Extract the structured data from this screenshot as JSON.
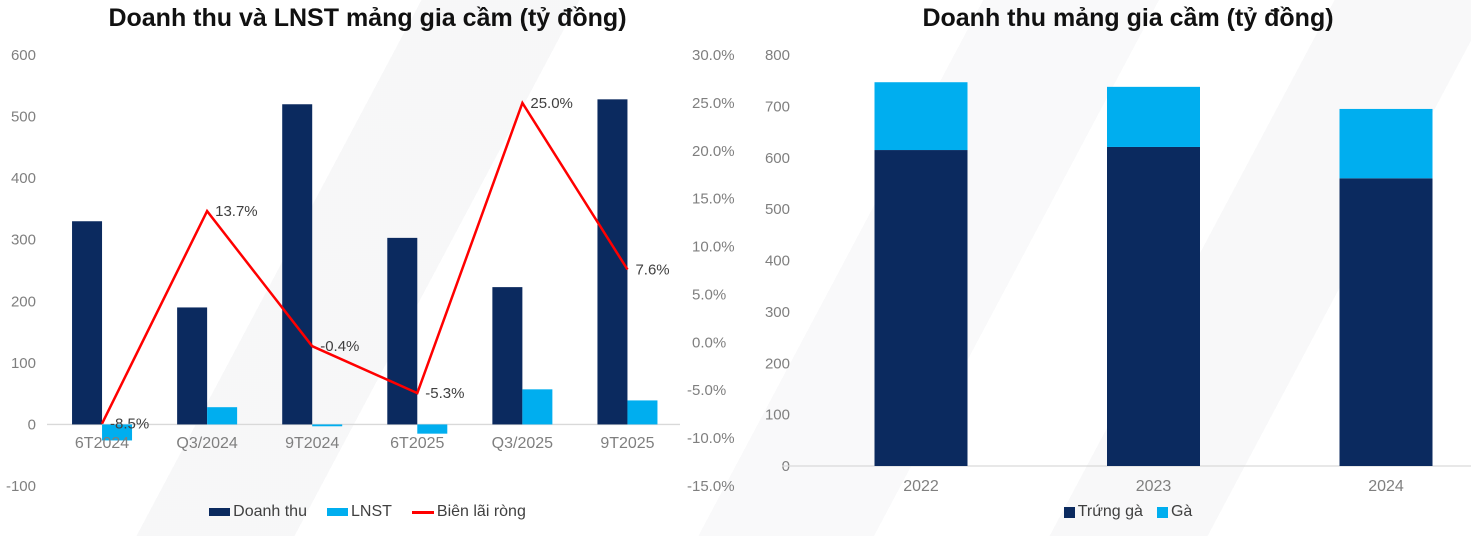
{
  "colors": {
    "navy": "#0B2A5F",
    "cyan": "#00AEEF",
    "red": "#FF0000",
    "axis_text": "#7f7f7f",
    "label_text": "#404040",
    "title_text": "#111111",
    "axis_line": "#d9d9d9",
    "background": "#ffffff"
  },
  "chart_data": [
    {
      "type": "bar+line combo, dual axis",
      "title": "Doanh thu và LNST mảng gia cầm (tỷ đồng)",
      "categories": [
        "6T2024",
        "Q3/2024",
        "9T2024",
        "6T2025",
        "Q3/2025",
        "9T2025"
      ],
      "series": [
        {
          "name": "Doanh thu",
          "kind": "bar",
          "color": "navy",
          "axis": "left",
          "values": [
            330,
            190,
            520,
            303,
            223,
            528
          ]
        },
        {
          "name": "LNST",
          "kind": "bar",
          "color": "cyan",
          "axis": "left",
          "values": [
            -26,
            28,
            -3,
            -15,
            57,
            39
          ]
        },
        {
          "name": "Biên lãi ròng",
          "kind": "line",
          "color": "red",
          "axis": "right",
          "values": [
            -8.5,
            13.7,
            -0.4,
            -5.3,
            25.0,
            7.6
          ],
          "point_labels": [
            "-8.5%",
            "13.7%",
            "-0.4%",
            "-5.3%",
            "25.0%",
            "7.6%"
          ]
        }
      ],
      "axes": {
        "left": {
          "min": -100,
          "max": 600,
          "tick_labels": [
            "600",
            "500",
            "400",
            "300",
            "200",
            "100",
            "0",
            "-100"
          ]
        },
        "right": {
          "min": -15,
          "max": 30,
          "tick_labels": [
            "30.0%",
            "25.0%",
            "20.0%",
            "15.0%",
            "10.0%",
            "5.0%",
            "0.0%",
            "-5.0%",
            "-10.0%",
            "-15.0%"
          ]
        }
      },
      "grid": false,
      "legend_position": "bottom",
      "legend": [
        {
          "label": "Doanh thu",
          "swatch": "bar",
          "color": "navy"
        },
        {
          "label": "LNST",
          "swatch": "bar",
          "color": "cyan"
        },
        {
          "label": "Biên lãi ròng",
          "swatch": "line",
          "color": "red"
        }
      ]
    },
    {
      "type": "stacked bar",
      "title": "Doanh thu mảng gia cầm (tỷ đồng)",
      "categories": [
        "2022",
        "2023",
        "2024"
      ],
      "series": [
        {
          "name": "Trứng gà",
          "kind": "bar-stack",
          "color": "navy",
          "values": [
            615,
            621,
            560
          ]
        },
        {
          "name": "Gà",
          "kind": "bar-stack",
          "color": "cyan",
          "values": [
            132,
            117,
            135
          ]
        }
      ],
      "axes": {
        "left": {
          "min": 0,
          "max": 800,
          "tick_labels": [
            "800",
            "700",
            "600",
            "500",
            "400",
            "300",
            "200",
            "100",
            "0"
          ]
        }
      },
      "grid": false,
      "legend_position": "bottom",
      "legend": [
        {
          "label": "Trứng gà",
          "swatch": "square",
          "color": "navy"
        },
        {
          "label": "Gà",
          "swatch": "square",
          "color": "cyan"
        }
      ]
    }
  ]
}
